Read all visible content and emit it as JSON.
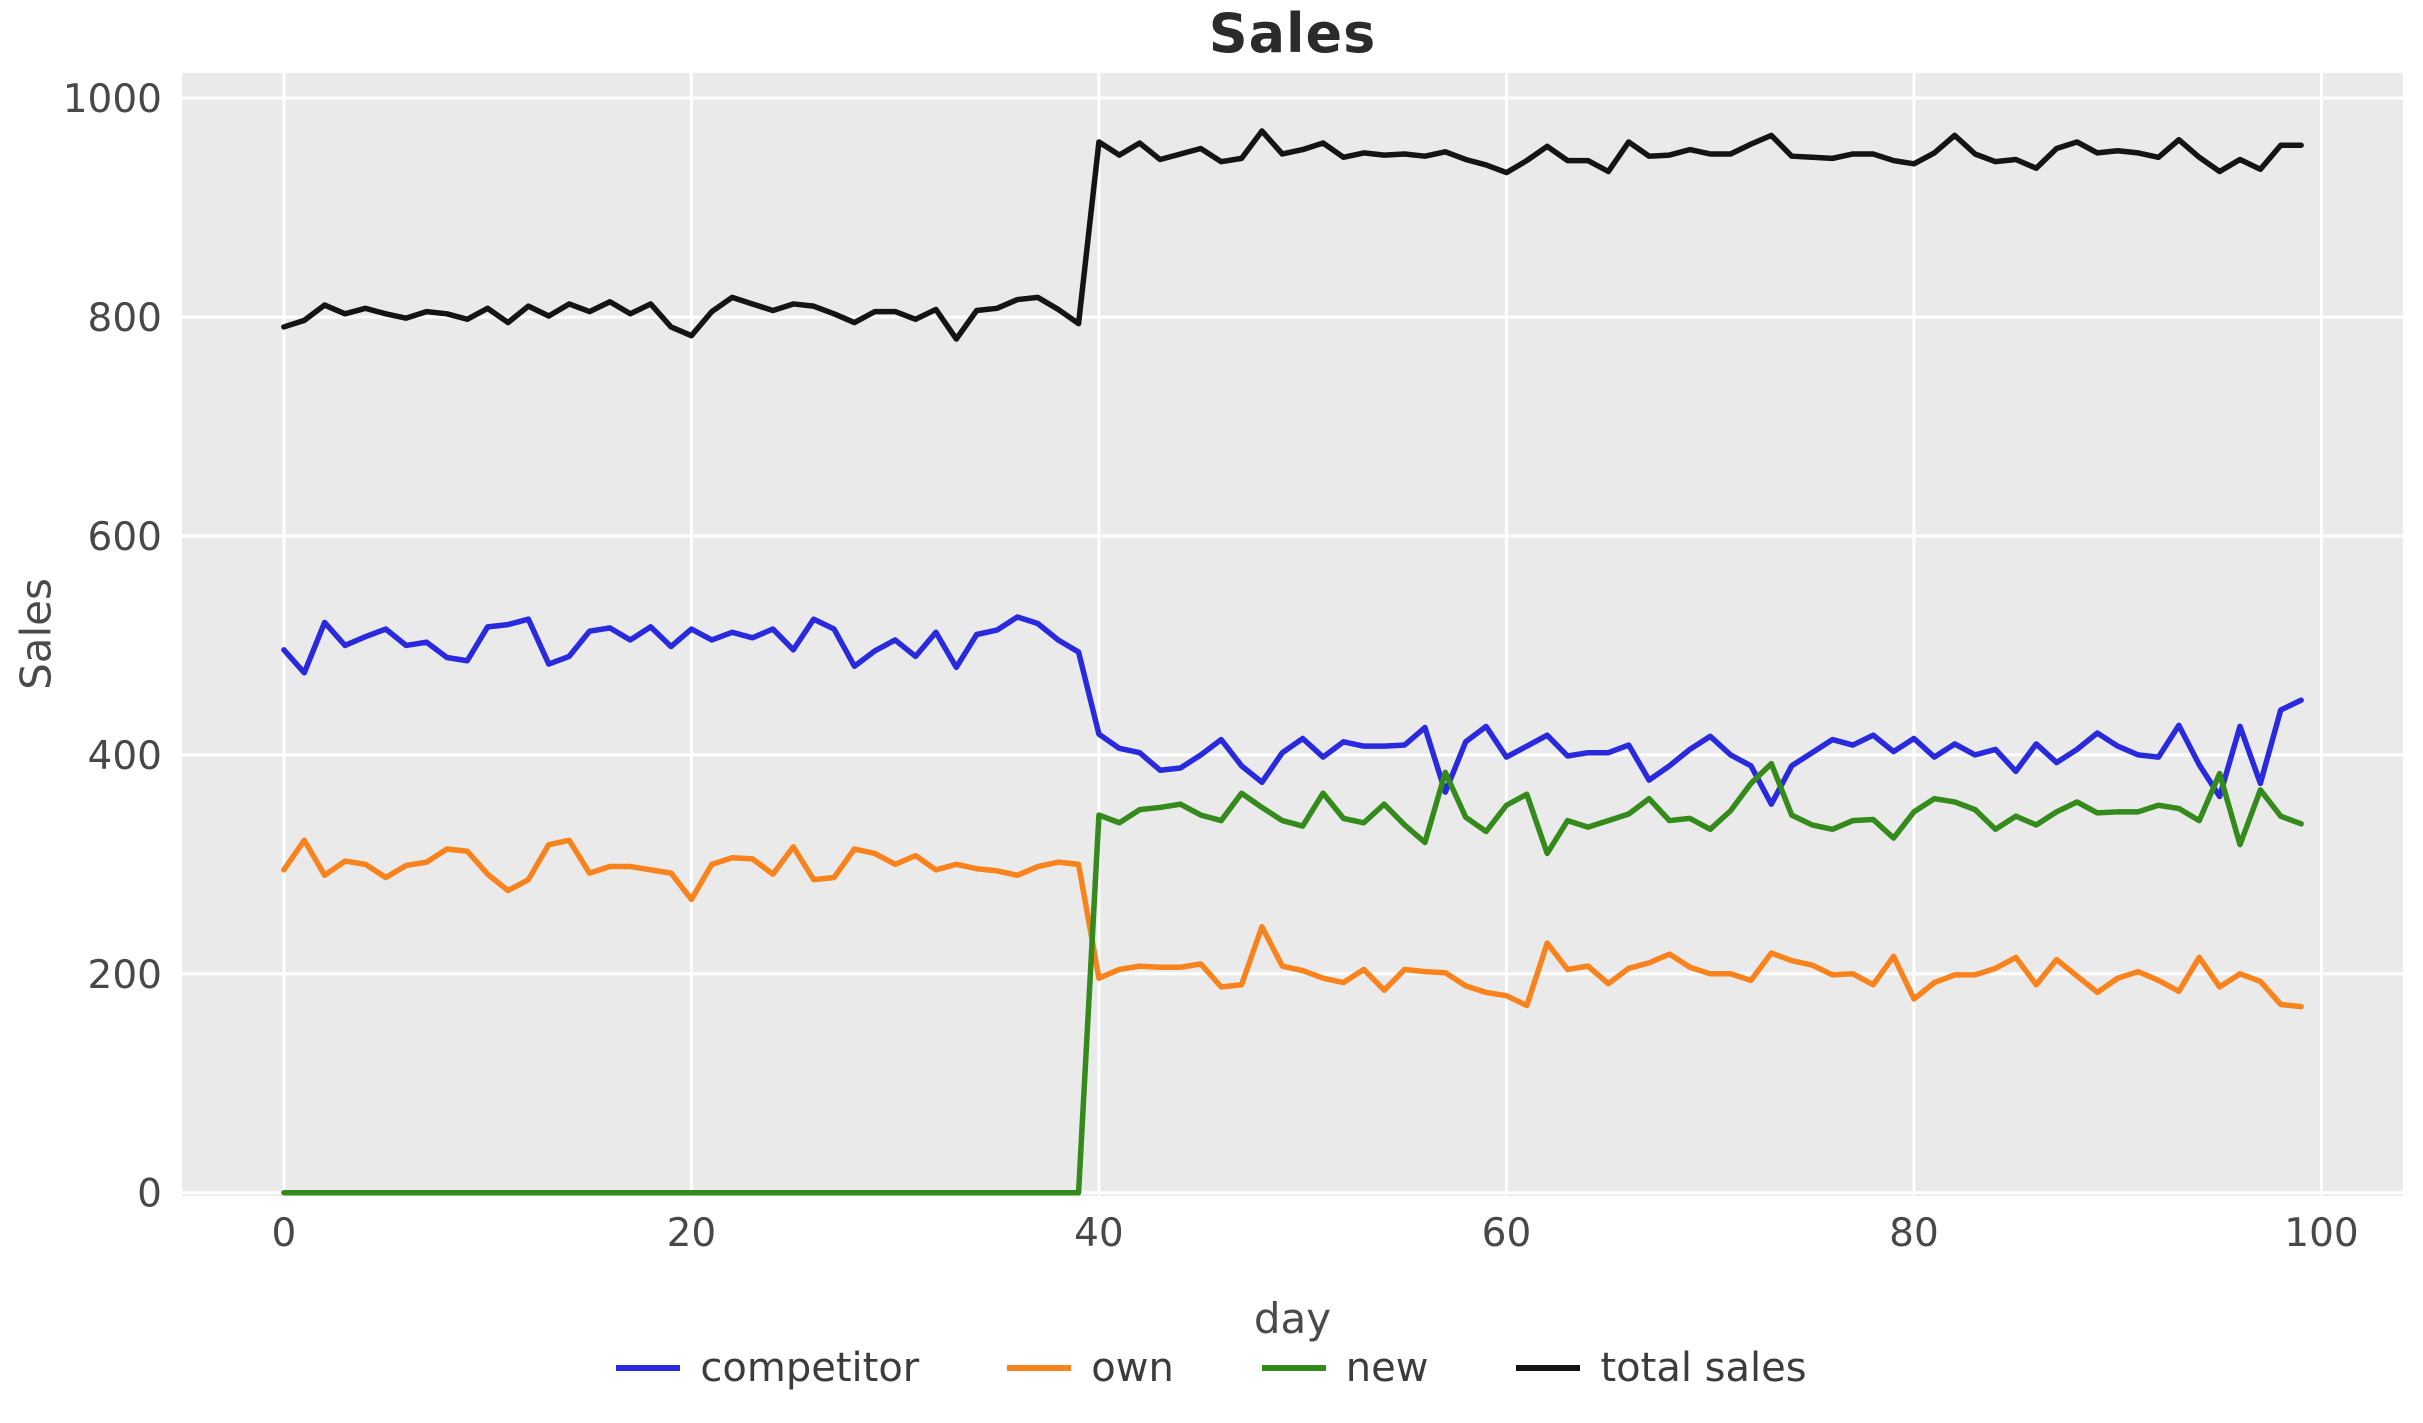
{
  "chart_data": {
    "type": "line",
    "title": "Sales",
    "xlabel": "day",
    "ylabel": "Sales",
    "xlim": [
      -5,
      104
    ],
    "ylim": [
      -3,
      1023
    ],
    "xticks": [
      0,
      20,
      40,
      60,
      80,
      100
    ],
    "yticks": [
      0,
      200,
      400,
      600,
      800,
      1000
    ],
    "grid": true,
    "plot_bg": "#eaeaea",
    "grid_color": "#ffffff",
    "tick_color": "#484848",
    "legend_position": "bottom-center",
    "x_start": 0,
    "x_step": 1,
    "series": [
      {
        "name": "competitor",
        "color": "#2929dd",
        "values": [
          496,
          475,
          521,
          500,
          508,
          515,
          500,
          503,
          489,
          486,
          517,
          519,
          524,
          483,
          490,
          513,
          516,
          505,
          517,
          499,
          515,
          505,
          512,
          507,
          515,
          496,
          524,
          515,
          481,
          495,
          505,
          490,
          512,
          480,
          510,
          514,
          526,
          520,
          505,
          494,
          419,
          406,
          402,
          386,
          388,
          400,
          414,
          390,
          375,
          402,
          415,
          398,
          412,
          408,
          408,
          409,
          425,
          366,
          412,
          426,
          398,
          408,
          418,
          399,
          402,
          402,
          409,
          377,
          390,
          405,
          417,
          400,
          390,
          355,
          390,
          402,
          414,
          409,
          418,
          403,
          415,
          398,
          410,
          400,
          405,
          385,
          410,
          393,
          405,
          420,
          408,
          400,
          398,
          427,
          391,
          362,
          426,
          374,
          441,
          450
        ]
      },
      {
        "name": "own",
        "color": "#f8831d",
        "values": [
          295,
          322,
          290,
          303,
          300,
          288,
          299,
          302,
          314,
          312,
          291,
          276,
          286,
          318,
          322,
          292,
          298,
          298,
          295,
          292,
          268,
          300,
          306,
          305,
          291,
          316,
          286,
          288,
          314,
          310,
          300,
          308,
          295,
          300,
          296,
          294,
          290,
          298,
          302,
          300,
          196,
          204,
          207,
          206,
          206,
          209,
          188,
          190,
          243,
          207,
          203,
          196,
          192,
          204,
          185,
          204,
          202,
          201,
          189,
          183,
          180,
          171,
          228,
          204,
          207,
          191,
          205,
          210,
          218,
          206,
          200,
          200,
          194,
          219,
          212,
          208,
          199,
          200,
          190,
          216,
          177,
          192,
          199,
          199,
          205,
          215,
          190,
          213,
          198,
          183,
          196,
          202,
          194,
          184,
          215,
          188,
          200,
          193,
          172,
          170
        ]
      },
      {
        "name": "new",
        "color": "#348a1b",
        "values": [
          0,
          0,
          0,
          0,
          0,
          0,
          0,
          0,
          0,
          0,
          0,
          0,
          0,
          0,
          0,
          0,
          0,
          0,
          0,
          0,
          0,
          0,
          0,
          0,
          0,
          0,
          0,
          0,
          0,
          0,
          0,
          0,
          0,
          0,
          0,
          0,
          0,
          0,
          0,
          0,
          345,
          338,
          350,
          352,
          355,
          345,
          340,
          365,
          352,
          340,
          335,
          365,
          342,
          338,
          355,
          336,
          320,
          384,
          343,
          330,
          354,
          364,
          310,
          340,
          334,
          340,
          346,
          360,
          340,
          342,
          332,
          349,
          374,
          392,
          345,
          336,
          332,
          340,
          341,
          324,
          348,
          360,
          357,
          350,
          332,
          344,
          336,
          348,
          357,
          347,
          348,
          348,
          354,
          351,
          340,
          383,
          318,
          368,
          344,
          337
        ]
      },
      {
        "name": "total sales",
        "color": "#141414",
        "values": [
          791,
          797,
          811,
          803,
          808,
          803,
          799,
          805,
          803,
          798,
          808,
          795,
          810,
          801,
          812,
          805,
          814,
          803,
          812,
          791,
          783,
          805,
          818,
          812,
          806,
          812,
          810,
          803,
          795,
          805,
          805,
          798,
          807,
          780,
          806,
          808,
          816,
          818,
          807,
          794,
          960,
          948,
          959,
          944,
          949,
          954,
          942,
          945,
          970,
          949,
          953,
          959,
          946,
          950,
          948,
          949,
          947,
          951,
          944,
          939,
          932,
          943,
          956,
          943,
          943,
          933,
          960,
          947,
          948,
          953,
          949,
          949,
          958,
          966,
          947,
          946,
          945,
          949,
          949,
          943,
          940,
          950,
          966,
          949,
          942,
          944,
          936,
          954,
          960,
          950,
          952,
          950,
          946,
          962,
          946,
          933,
          944,
          935,
          957,
          957
        ]
      }
    ]
  }
}
